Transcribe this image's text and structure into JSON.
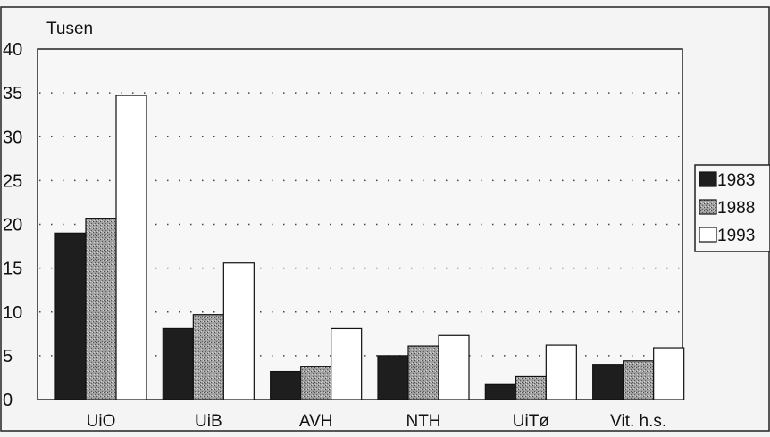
{
  "chart_data": {
    "type": "bar",
    "title": "",
    "ylabel": "Tusen",
    "xlabel": "",
    "ylim": [
      0,
      40
    ],
    "yticks": [
      0,
      5,
      10,
      15,
      20,
      25,
      30,
      35,
      40
    ],
    "grid": "horizontal-dotted",
    "legend_position": "right",
    "categories": [
      "UiO",
      "UiB",
      "AVH",
      "NTH",
      "UiTø",
      "Vit. h.s."
    ],
    "series": [
      {
        "name": "1983",
        "values": [
          19.0,
          8.1,
          3.2,
          5.0,
          1.7,
          4.0
        ],
        "color": "#1e1e1e",
        "pattern": "solid"
      },
      {
        "name": "1988",
        "values": [
          20.7,
          9.7,
          3.8,
          6.1,
          2.6,
          4.4
        ],
        "color": "#8f8f8f",
        "pattern": "stipple"
      },
      {
        "name": "1993",
        "values": [
          34.7,
          15.6,
          8.1,
          7.3,
          6.2,
          5.9
        ],
        "color": "#ffffff",
        "pattern": "solid"
      }
    ]
  }
}
